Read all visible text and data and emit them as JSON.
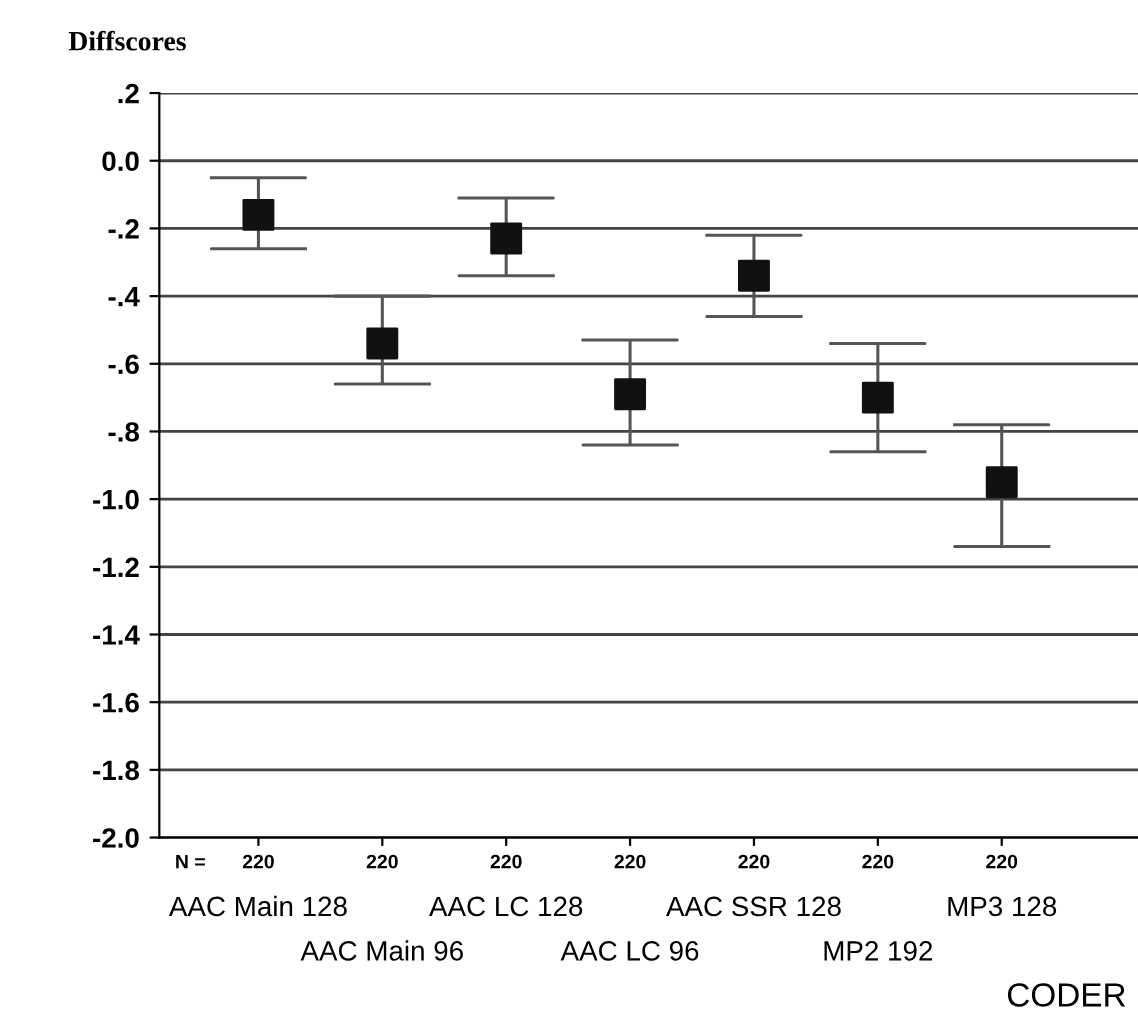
{
  "chart_data": {
    "type": "scatter",
    "ylabel": "Diffscores",
    "xlabel": "CODER",
    "categories": [
      "AAC Main 128",
      "AAC Main 96",
      "AAC LC 128",
      "AAC LC 96",
      "AAC SSR 128",
      "MP2 192",
      "MP3 128"
    ],
    "values": [
      -0.16,
      -0.54,
      -0.23,
      -0.69,
      -0.34,
      -0.7,
      -0.95
    ],
    "errors": [
      [
        -0.26,
        -0.05
      ],
      [
        -0.66,
        -0.4
      ],
      [
        -0.34,
        -0.11
      ],
      [
        -0.84,
        -0.53
      ],
      [
        -0.46,
        -0.22
      ],
      [
        -0.86,
        -0.54
      ],
      [
        -1.14,
        -0.78
      ]
    ],
    "color": "#111111",
    "marker": "square",
    "grid": "y",
    "legend": false,
    "ylim": [
      -2.0,
      0.2
    ],
    "yticks": [
      {
        "value": 0.2,
        "label": ".2"
      },
      {
        "value": 0.0,
        "label": "0.0"
      },
      {
        "value": -0.2,
        "label": "-.2"
      },
      {
        "value": -0.4,
        "label": "-.4"
      },
      {
        "value": -0.6,
        "label": "-.6"
      },
      {
        "value": -0.8,
        "label": "-.8"
      },
      {
        "value": -1.0,
        "label": "-1.0"
      },
      {
        "value": -1.2,
        "label": "-1.2"
      },
      {
        "value": -1.4,
        "label": "-1.4"
      },
      {
        "value": -1.6,
        "label": "-1.6"
      },
      {
        "value": -1.8,
        "label": "-1.8"
      },
      {
        "value": -2.0,
        "label": "-2.0"
      }
    ],
    "annotations": [
      "N =",
      "220",
      "220",
      "220",
      "220",
      "220",
      "220",
      "220"
    ]
  }
}
